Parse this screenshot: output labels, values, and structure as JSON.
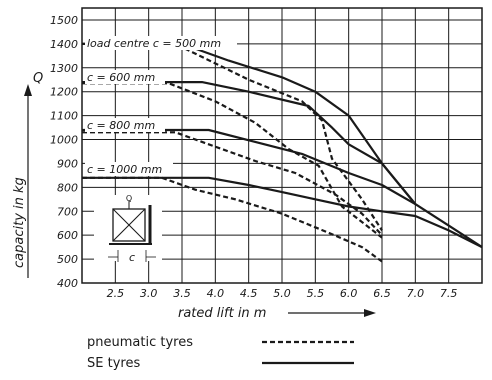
{
  "chart_data": {
    "type": "line",
    "xlabel": "rated lift in m",
    "ylabel": "capacity in kg",
    "y_axis_symbol": "Q",
    "xlim": [
      2,
      8
    ],
    "ylim": [
      400,
      1550
    ],
    "x_ticks": [
      "2.5",
      "3.0",
      "3.5",
      "4.0",
      "4.5",
      "5.0",
      "5.5",
      "6.0",
      "6.5",
      "7.0",
      "7.5"
    ],
    "y_ticks": [
      "400",
      "500",
      "600",
      "700",
      "800",
      "900",
      "1000",
      "1100",
      "1200",
      "1300",
      "1400",
      "1500"
    ],
    "grid": true,
    "curve_labels": [
      "load centre c = 500 mm",
      "c = 600 mm",
      "c = 800 mm",
      "c = 1000 mm"
    ],
    "series": [
      {
        "group": 0,
        "style": "solid",
        "points": [
          [
            2,
            1400
          ],
          [
            3.5,
            1400
          ],
          [
            4.2,
            1330
          ],
          [
            5,
            1260
          ],
          [
            5.5,
            1200
          ],
          [
            6,
            1100
          ],
          [
            6.5,
            900
          ],
          [
            7,
            730
          ],
          [
            7.5,
            640
          ],
          [
            8,
            550
          ]
        ]
      },
      {
        "group": 0,
        "style": "dashed",
        "points": [
          [
            2,
            1400
          ],
          [
            3.4,
            1400
          ],
          [
            4.5,
            1250
          ],
          [
            5.3,
            1160
          ],
          [
            5.6,
            1080
          ],
          [
            5.75,
            920
          ],
          [
            6.2,
            750
          ],
          [
            6.5,
            620
          ]
        ]
      },
      {
        "group": 1,
        "style": "solid",
        "points": [
          [
            2,
            1240
          ],
          [
            3.8,
            1240
          ],
          [
            4.5,
            1200
          ],
          [
            5.4,
            1140
          ],
          [
            5.75,
            1050
          ],
          [
            6,
            980
          ],
          [
            6.5,
            900
          ],
          [
            7,
            730
          ]
        ]
      },
      {
        "group": 1,
        "style": "dashed",
        "points": [
          [
            2,
            1235
          ],
          [
            3.3,
            1235
          ],
          [
            4,
            1160
          ],
          [
            4.6,
            1070
          ],
          [
            5.1,
            960
          ],
          [
            5.55,
            890
          ],
          [
            5.9,
            720
          ],
          [
            6.5,
            590
          ]
        ]
      },
      {
        "group": 2,
        "style": "solid",
        "points": [
          [
            2,
            1040
          ],
          [
            3.9,
            1040
          ],
          [
            4.6,
            990
          ],
          [
            5.3,
            940
          ],
          [
            6,
            860
          ],
          [
            6.5,
            810
          ],
          [
            7,
            730
          ]
        ]
      },
      {
        "group": 2,
        "style": "dashed",
        "points": [
          [
            2,
            1030
          ],
          [
            3.4,
            1030
          ],
          [
            4,
            970
          ],
          [
            4.6,
            910
          ],
          [
            5.2,
            860
          ],
          [
            5.8,
            770
          ],
          [
            6.2,
            690
          ],
          [
            6.5,
            600
          ]
        ]
      },
      {
        "group": 3,
        "style": "solid",
        "points": [
          [
            2,
            840
          ],
          [
            3.9,
            840
          ],
          [
            4.5,
            810
          ],
          [
            5,
            780
          ],
          [
            5.5,
            750
          ],
          [
            6,
            720
          ],
          [
            6.5,
            700
          ],
          [
            7,
            680
          ],
          [
            7.5,
            620
          ],
          [
            8,
            550
          ]
        ]
      },
      {
        "group": 3,
        "style": "dashed",
        "points": [
          [
            2,
            840
          ],
          [
            3.2,
            840
          ],
          [
            3.7,
            790
          ],
          [
            4.3,
            750
          ],
          [
            5,
            690
          ],
          [
            5.7,
            610
          ],
          [
            6.2,
            550
          ],
          [
            6.5,
            490
          ]
        ]
      }
    ],
    "legend": [
      {
        "label": "pneumatic tyres",
        "style": "dashed"
      },
      {
        "label": "SE tyres",
        "style": "solid"
      }
    ],
    "legend_placement": "bottom",
    "inset_labels": {
      "top": "Q",
      "bottom": "c"
    }
  }
}
